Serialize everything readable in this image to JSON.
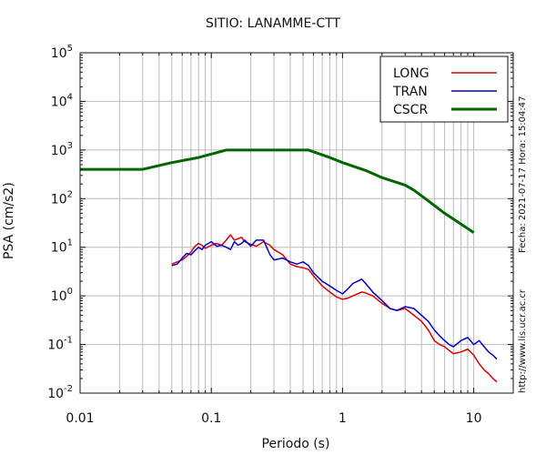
{
  "chart_data": {
    "type": "line",
    "title": "SITIO: LANAMME-CTT",
    "xlabel": "Periodo (s)",
    "ylabel": "PSA (cm/s2)",
    "xscale": "log",
    "yscale": "log",
    "xlim": [
      0.01,
      20
    ],
    "ylim": [
      0.01,
      100000
    ],
    "x_ticks": [
      "0.01",
      "0.1",
      "1",
      "10"
    ],
    "y_ticks": [
      {
        "base": "10",
        "exp": "-2"
      },
      {
        "base": "10",
        "exp": "-1"
      },
      {
        "base": "10",
        "exp": "0"
      },
      {
        "base": "10",
        "exp": "1"
      },
      {
        "base": "10",
        "exp": "2"
      },
      {
        "base": "10",
        "exp": "3"
      },
      {
        "base": "10",
        "exp": "4"
      },
      {
        "base": "10",
        "exp": "5"
      }
    ],
    "grid": true,
    "legend": "top-right",
    "series": [
      {
        "name": "LONG",
        "color": "#dd0000",
        "x": [
          0.05,
          0.055,
          0.06,
          0.065,
          0.07,
          0.075,
          0.08,
          0.085,
          0.09,
          0.1,
          0.11,
          0.12,
          0.13,
          0.14,
          0.15,
          0.16,
          0.17,
          0.18,
          0.2,
          0.22,
          0.25,
          0.28,
          0.3,
          0.35,
          0.4,
          0.45,
          0.5,
          0.55,
          0.6,
          0.7,
          0.8,
          0.9,
          1.0,
          1.1,
          1.2,
          1.3,
          1.4,
          1.5,
          1.7,
          2.0,
          2.3,
          2.6,
          3.0,
          3.5,
          4.0,
          4.5,
          5.0,
          5.5,
          6.0,
          6.5,
          7.0,
          8.0,
          9.0,
          10.0,
          11.0,
          12.0,
          13.0,
          14.0,
          15.0
        ],
        "y": [
          4.5,
          5.0,
          5.5,
          6.5,
          8.0,
          10.5,
          12.0,
          11.0,
          9.5,
          11.0,
          12.0,
          11.0,
          14.0,
          18.0,
          14.0,
          15.0,
          16.0,
          13.0,
          11.5,
          10.5,
          13.0,
          11.0,
          9.0,
          7.0,
          4.5,
          4.0,
          3.8,
          3.5,
          2.6,
          1.6,
          1.2,
          0.95,
          0.85,
          0.9,
          1.0,
          1.1,
          1.2,
          1.15,
          1.0,
          0.7,
          0.55,
          0.5,
          0.55,
          0.4,
          0.3,
          0.2,
          0.12,
          0.1,
          0.09,
          0.075,
          0.065,
          0.07,
          0.08,
          0.06,
          0.04,
          0.03,
          0.025,
          0.02,
          0.017
        ]
      },
      {
        "name": "TRAN",
        "color": "#0000cc",
        "x": [
          0.05,
          0.055,
          0.06,
          0.065,
          0.07,
          0.075,
          0.08,
          0.085,
          0.09,
          0.1,
          0.11,
          0.12,
          0.13,
          0.14,
          0.15,
          0.16,
          0.17,
          0.18,
          0.2,
          0.22,
          0.25,
          0.28,
          0.3,
          0.35,
          0.4,
          0.45,
          0.5,
          0.55,
          0.6,
          0.7,
          0.8,
          0.9,
          1.0,
          1.1,
          1.2,
          1.3,
          1.4,
          1.5,
          1.7,
          2.0,
          2.3,
          2.6,
          3.0,
          3.5,
          4.0,
          4.5,
          5.0,
          5.5,
          6.0,
          6.5,
          7.0,
          8.0,
          9.0,
          10.0,
          11.0,
          12.0,
          13.0,
          14.0,
          15.0
        ],
        "y": [
          4.2,
          4.5,
          6.0,
          7.5,
          7.0,
          8.5,
          10.0,
          9.0,
          11.0,
          13.0,
          10.5,
          11.0,
          10.0,
          9.0,
          13.0,
          11.0,
          12.0,
          14.0,
          10.5,
          14.0,
          14.0,
          7.0,
          5.5,
          6.0,
          5.0,
          4.5,
          5.0,
          4.2,
          3.0,
          2.0,
          1.6,
          1.3,
          1.1,
          1.4,
          1.8,
          2.0,
          2.2,
          1.8,
          1.2,
          0.8,
          0.55,
          0.5,
          0.6,
          0.55,
          0.4,
          0.3,
          0.2,
          0.15,
          0.12,
          0.1,
          0.09,
          0.12,
          0.14,
          0.1,
          0.12,
          0.09,
          0.07,
          0.06,
          0.05
        ]
      },
      {
        "name": "CSCR",
        "color": "#006600",
        "x": [
          0.01,
          0.03,
          0.05,
          0.08,
          0.13,
          0.3,
          0.55,
          0.8,
          1.0,
          1.5,
          2.0,
          3.0,
          3.5,
          4.5,
          6.0,
          8.0,
          10.0
        ],
        "y": [
          400,
          400,
          550,
          700,
          1000,
          1000,
          1000,
          700,
          550,
          380,
          270,
          190,
          150,
          90,
          50,
          30,
          20
        ]
      }
    ],
    "side_text": {
      "timestamp": "Fecha: 2021-07-17 Hora: 15:04:47",
      "url": "http://www.lis.ucr.ac.cr"
    }
  }
}
